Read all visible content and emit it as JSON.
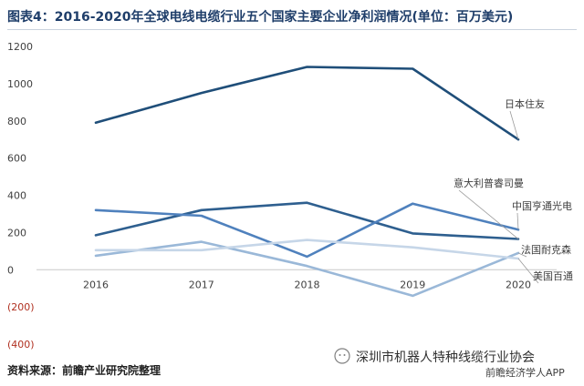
{
  "title": "图表4：2016-2020年全球电线电缆行业五个国家主要企业净利润情况(单位：百万美元)",
  "source": "资料来源：前瞻产业研究院整理",
  "watermark": "深圳市机器人特种线缆行业协会",
  "app_credit": "前瞻经济学人APP",
  "chart_data": {
    "type": "line",
    "title": "图表4：2016-2020年全球电线电缆行业五个国家主要企业净利润情况(单位：百万美元)",
    "x": [
      "2016",
      "2017",
      "2018",
      "2019",
      "2020"
    ],
    "ylim": [
      -400,
      1200
    ],
    "yticks": [
      -400,
      -200,
      0,
      200,
      400,
      600,
      800,
      1000,
      1200
    ],
    "ytick_labels": [
      "(400)",
      "(200)",
      "0",
      "200",
      "400",
      "600",
      "800",
      "1000",
      "1200"
    ],
    "grid": false,
    "series": [
      {
        "name": "日本住友",
        "color": "#1f4e79",
        "values": [
          790,
          950,
          1090,
          1080,
          700
        ]
      },
      {
        "name": "意大利普睿司曼",
        "color": "#2e5f8f",
        "values": [
          185,
          320,
          360,
          195,
          165
        ]
      },
      {
        "name": "中国亨通光电",
        "color": "#4f81bd",
        "values": [
          320,
          290,
          70,
          355,
          215
        ]
      },
      {
        "name": "法国耐克森",
        "color": "#9ab8d8",
        "values": [
          75,
          150,
          20,
          -140,
          90
        ]
      },
      {
        "name": "美国百通",
        "color": "#c6d6e8",
        "values": [
          105,
          105,
          160,
          120,
          60
        ]
      }
    ]
  }
}
